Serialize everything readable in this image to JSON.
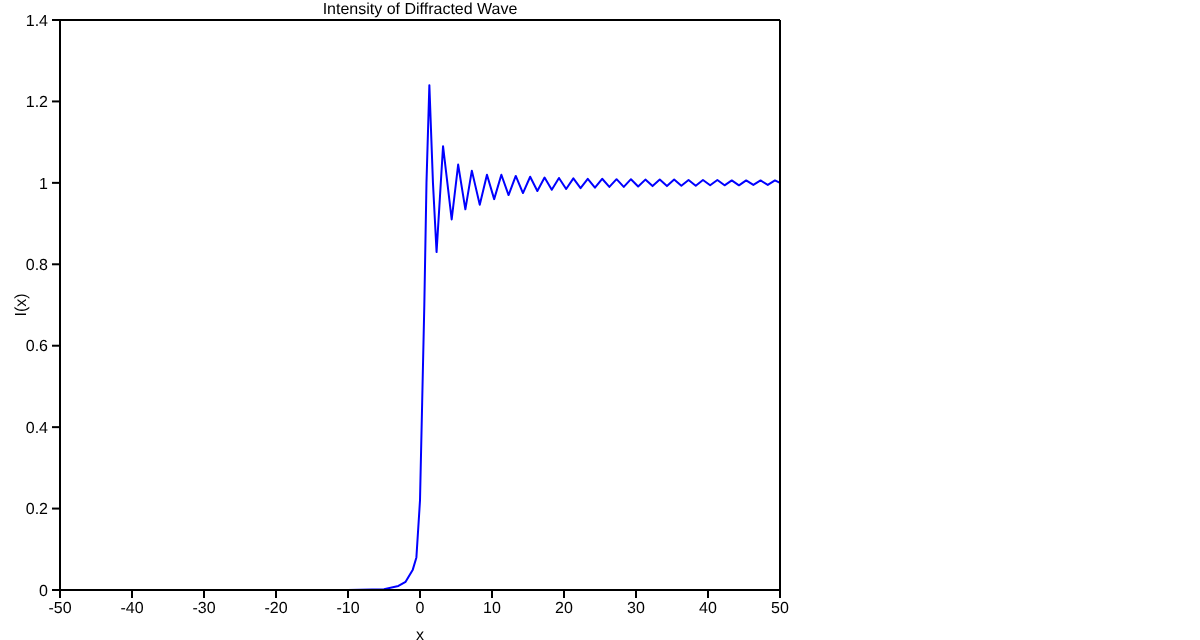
{
  "chart_data": {
    "type": "line",
    "title": "Intensity of Diffracted Wave",
    "xlabel": "x",
    "ylabel": "I(x)",
    "xlim": [
      -50,
      50
    ],
    "xticks": [
      -50,
      -40,
      -30,
      -20,
      -10,
      0,
      10,
      20,
      30,
      40,
      50
    ],
    "ylim": [
      0,
      1.4
    ],
    "yticks": [
      0,
      0.2,
      0.4,
      0.6,
      0.8,
      1,
      1.2,
      1.4
    ],
    "marker": "none",
    "line_style": "solid",
    "series": [
      {
        "color": "#0000ff",
        "x": [
          -50,
          -10,
          -5,
          -3,
          -2,
          -1,
          -0.5,
          0,
          0.3,
          0.6,
          0.9,
          1.3,
          1.8,
          2.3,
          3.2,
          4.4,
          5.3,
          6.3,
          7.2,
          8.3,
          9.3,
          10.3,
          11.3,
          12.3,
          13.3,
          14.3,
          15.3,
          16.3,
          17.3,
          18.3,
          19.3,
          20.3,
          21.3,
          22.3,
          23.3,
          24.3,
          25.3,
          26.3,
          27.3,
          28.3,
          29.3,
          30.3,
          31.3,
          32.3,
          33.3,
          34.3,
          35.3,
          36.3,
          37.3,
          38.3,
          39.3,
          40.3,
          41.3,
          42.3,
          43.3,
          44.3,
          45.3,
          46.3,
          47.3,
          48.3,
          49.3,
          50
        ],
        "values": [
          0,
          0,
          0.002,
          0.01,
          0.02,
          0.05,
          0.08,
          0.22,
          0.46,
          0.7,
          1.0,
          1.24,
          1.0,
          0.83,
          1.09,
          0.91,
          1.045,
          0.935,
          1.03,
          0.946,
          1.02,
          0.96,
          1.02,
          0.97,
          1.017,
          0.975,
          1.015,
          0.98,
          1.013,
          0.983,
          1.012,
          0.985,
          1.011,
          0.987,
          1.01,
          0.988,
          1.01,
          0.99,
          1.009,
          0.99,
          1.009,
          0.991,
          1.008,
          0.992,
          1.008,
          0.992,
          1.008,
          0.993,
          1.007,
          0.993,
          1.007,
          0.994,
          1.007,
          0.994,
          1.006,
          0.994,
          1.006,
          0.995,
          1.006,
          0.995,
          1.006,
          1.0
        ]
      }
    ]
  }
}
